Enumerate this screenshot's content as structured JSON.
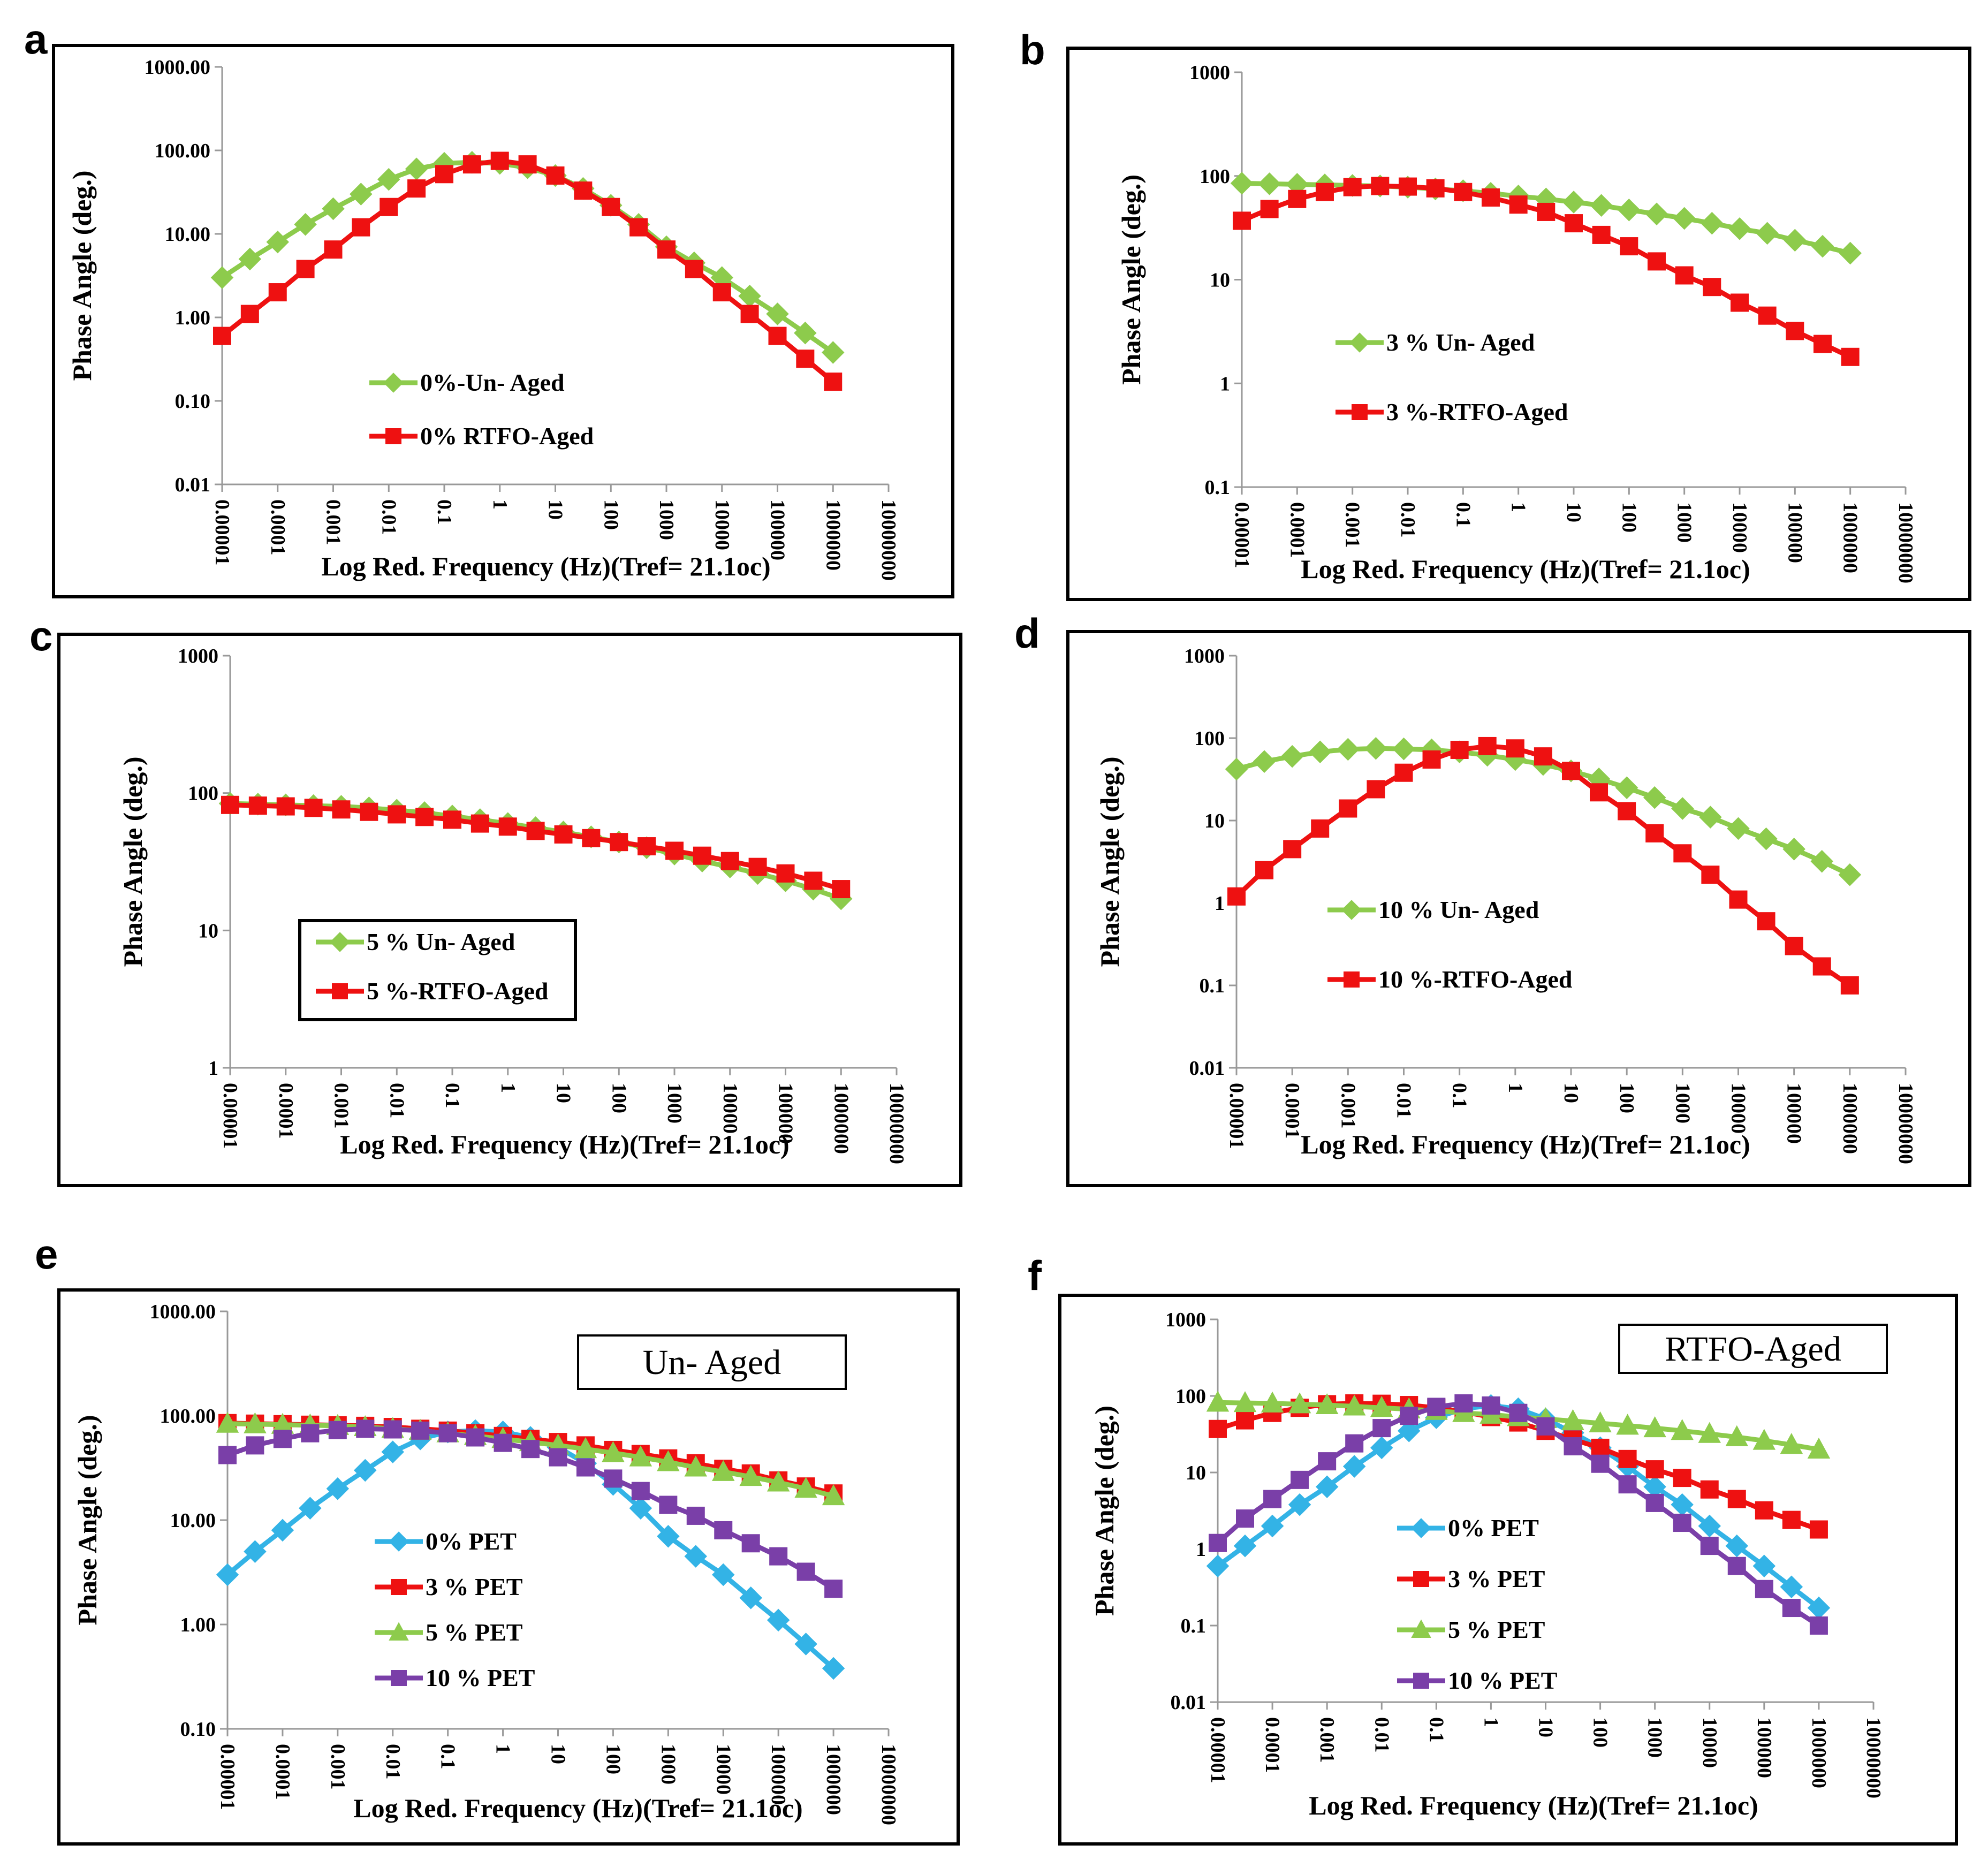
{
  "figure": {
    "x_tick_labels": [
      "0.00001",
      "0.0001",
      "0.001",
      "0.01",
      "0.1",
      "1",
      "10",
      "100",
      "1000",
      "10000",
      "100000",
      "1000000",
      "10000000"
    ],
    "colors": {
      "green": "#8DCB4C",
      "red": "#EE1111",
      "blue": "#33B3E6",
      "purple": "#7A3FA8",
      "frame": "#000000",
      "axis": "#999999"
    }
  },
  "chart_data": [
    {
      "panel": "a",
      "type": "line",
      "xscale": "log",
      "yscale": "log",
      "xlabel": "Log Red. Frequency (Hz)(Tref= 21.1oc)",
      "ylabel": "Phase Angle (deg.)",
      "xlim": [
        1e-05,
        10000000
      ],
      "ylim": [
        0.01,
        1000
      ],
      "ytick_labels": [
        "0.01",
        "0.10",
        "1.00",
        "10.00",
        "100.00",
        "1000.00"
      ],
      "legend_box": false,
      "series": [
        {
          "name": "0%-Un- Aged",
          "color": "#8DCB4C",
          "marker": "diamond",
          "x": [
            1e-05,
            3.16e-05,
            0.0001,
            0.000316,
            0.001,
            0.00316,
            0.01,
            0.0316,
            0.1,
            0.316,
            1,
            3.16,
            10,
            31.6,
            100,
            316,
            1000,
            3160,
            10000,
            31600,
            100000,
            316000,
            1000000
          ],
          "y": [
            3,
            5,
            8,
            13,
            20,
            30,
            45,
            60,
            70,
            72,
            70,
            62,
            50,
            35,
            22,
            13,
            7,
            4.5,
            3,
            1.8,
            1.1,
            0.65,
            0.38
          ]
        },
        {
          "name": "0% RTFO-Aged",
          "color": "#EE1111",
          "marker": "square",
          "x": [
            1e-05,
            3.16e-05,
            0.0001,
            0.000316,
            0.001,
            0.00316,
            0.01,
            0.0316,
            0.1,
            0.316,
            1,
            3.16,
            10,
            31.6,
            100,
            316,
            1000,
            3160,
            10000,
            31600,
            100000,
            316000,
            1000000
          ],
          "y": [
            0.6,
            1.1,
            2,
            3.8,
            6.5,
            12,
            21,
            35,
            52,
            68,
            75,
            68,
            50,
            33,
            21,
            12,
            6.5,
            3.8,
            2,
            1.1,
            0.6,
            0.32,
            0.17
          ]
        }
      ]
    },
    {
      "panel": "b",
      "type": "line",
      "xscale": "log",
      "yscale": "log",
      "xlabel": "Log Red. Frequency (Hz)(Tref= 21.1oc)",
      "ylabel": "Phase Angle (deg.)",
      "xlim": [
        1e-05,
        10000000
      ],
      "ylim": [
        0.1,
        1000
      ],
      "ytick_labels": [
        "0.1",
        "1",
        "10",
        "100",
        "1000"
      ],
      "legend_box": false,
      "series": [
        {
          "name": "3 % Un- Aged",
          "color": "#8DCB4C",
          "marker": "diamond",
          "x": [
            1e-05,
            3.16e-05,
            0.0001,
            0.000316,
            0.001,
            0.00316,
            0.01,
            0.0316,
            0.1,
            0.316,
            1,
            3.16,
            10,
            31.6,
            100,
            316,
            1000,
            3160,
            10000,
            31600,
            100000,
            316000,
            1000000
          ],
          "y": [
            85,
            84,
            83,
            82,
            81,
            80,
            78,
            75,
            72,
            68,
            64,
            60,
            56,
            52,
            47,
            43,
            39,
            35,
            31,
            28,
            24,
            21,
            18
          ]
        },
        {
          "name": "3 %-RTFO-Aged",
          "color": "#EE1111",
          "marker": "square",
          "x": [
            1e-05,
            3.16e-05,
            0.0001,
            0.000316,
            0.001,
            0.00316,
            0.01,
            0.0316,
            0.1,
            0.316,
            1,
            3.16,
            10,
            31.6,
            100,
            316,
            1000,
            3160,
            10000,
            31600,
            100000,
            316000,
            1000000
          ],
          "y": [
            37,
            48,
            60,
            70,
            78,
            80,
            79,
            76,
            70,
            62,
            53,
            45,
            35,
            27,
            21,
            15,
            11,
            8.5,
            6,
            4.5,
            3.2,
            2.4,
            1.8
          ]
        }
      ]
    },
    {
      "panel": "c",
      "type": "line",
      "xscale": "log",
      "yscale": "log",
      "xlabel": "Log Red. Frequency (Hz)(Tref= 21.1oc)",
      "ylabel": "Phase Angle (deg.)",
      "xlim": [
        1e-05,
        10000000
      ],
      "ylim": [
        1,
        1000
      ],
      "ytick_labels": [
        "1",
        "10",
        "100",
        "1000"
      ],
      "legend_box": true,
      "series": [
        {
          "name": "5 % Un- Aged",
          "color": "#8DCB4C",
          "marker": "diamond",
          "x": [
            1e-05,
            3.16e-05,
            0.0001,
            0.000316,
            0.001,
            0.00316,
            0.01,
            0.0316,
            0.1,
            0.316,
            1,
            3.16,
            10,
            31.6,
            100,
            316,
            1000,
            3160,
            10000,
            31600,
            100000,
            316000,
            1000000
          ],
          "y": [
            84,
            83,
            82,
            81,
            80,
            78,
            75,
            72,
            68,
            64,
            60,
            56,
            52,
            48,
            44,
            40,
            36,
            32,
            29,
            26,
            23,
            20,
            17
          ]
        },
        {
          "name": "5 %-RTFO-Aged",
          "color": "#EE1111",
          "marker": "square",
          "x": [
            1e-05,
            3.16e-05,
            0.0001,
            0.000316,
            0.001,
            0.00316,
            0.01,
            0.0316,
            0.1,
            0.316,
            1,
            3.16,
            10,
            31.6,
            100,
            316,
            1000,
            3160,
            10000,
            31600,
            100000,
            316000,
            1000000
          ],
          "y": [
            82,
            81,
            80,
            78,
            76,
            73,
            70,
            67,
            64,
            60,
            57,
            53,
            50,
            47,
            44,
            41,
            38,
            35,
            32,
            29,
            26,
            23,
            20
          ]
        }
      ]
    },
    {
      "panel": "d",
      "type": "line",
      "xscale": "log",
      "yscale": "log",
      "xlabel": "Log Red. Frequency (Hz)(Tref= 21.1oc)",
      "ylabel": "Phase Angle (deg.)",
      "xlim": [
        1e-05,
        10000000
      ],
      "ylim": [
        0.01,
        1000
      ],
      "ytick_labels": [
        "0.01",
        "0.1",
        "1",
        "10",
        "100",
        "1000"
      ],
      "legend_box": false,
      "series": [
        {
          "name": "10 % Un- Aged",
          "color": "#8DCB4C",
          "marker": "diamond",
          "x": [
            1e-05,
            3.16e-05,
            0.0001,
            0.000316,
            0.001,
            0.00316,
            0.01,
            0.0316,
            0.1,
            0.316,
            1,
            3.16,
            10,
            31.6,
            100,
            316,
            1000,
            3160,
            10000,
            31600,
            100000,
            316000,
            1000000
          ],
          "y": [
            42,
            52,
            60,
            68,
            73,
            75,
            74,
            72,
            68,
            62,
            55,
            48,
            40,
            32,
            25,
            19,
            14,
            11,
            8,
            6,
            4.5,
            3.2,
            2.2
          ]
        },
        {
          "name": "10 %-RTFO-Aged",
          "color": "#EE1111",
          "marker": "square",
          "x": [
            1e-05,
            3.16e-05,
            0.0001,
            0.000316,
            0.001,
            0.00316,
            0.01,
            0.0316,
            0.1,
            0.316,
            1,
            3.16,
            10,
            31.6,
            100,
            316,
            1000,
            3160,
            10000,
            31600,
            100000,
            316000,
            1000000
          ],
          "y": [
            1.2,
            2.5,
            4.5,
            8,
            14,
            24,
            38,
            55,
            72,
            80,
            75,
            60,
            40,
            22,
            13,
            7,
            4,
            2.2,
            1.1,
            0.6,
            0.3,
            0.17,
            0.1
          ]
        }
      ]
    },
    {
      "panel": "e",
      "type": "line",
      "xscale": "log",
      "yscale": "log",
      "xlabel": "Log Red. Frequency (Hz)(Tref= 21.1oc)",
      "ylabel": "Phase Angle (deg.)",
      "xlim": [
        1e-05,
        10000000
      ],
      "ylim": [
        0.1,
        1000
      ],
      "ytick_labels": [
        "0.10",
        "1.00",
        "10.00",
        "100.00",
        "1000.00"
      ],
      "title_box": "Un- Aged",
      "legend_box": false,
      "series": [
        {
          "name": "0% PET",
          "color": "#33B3E6",
          "marker": "diamond",
          "x": [
            1e-05,
            3.16e-05,
            0.0001,
            0.000316,
            0.001,
            0.00316,
            0.01,
            0.0316,
            0.1,
            0.316,
            1,
            3.16,
            10,
            31.6,
            100,
            316,
            1000,
            3160,
            10000,
            31600,
            100000,
            316000,
            1000000
          ],
          "y": [
            3,
            5,
            8,
            13,
            20,
            30,
            45,
            60,
            70,
            72,
            70,
            62,
            50,
            35,
            22,
            13,
            7,
            4.5,
            3,
            1.8,
            1.1,
            0.65,
            0.38
          ]
        },
        {
          "name": "3 % PET",
          "color": "#EE1111",
          "marker": "square",
          "x": [
            1e-05,
            3.16e-05,
            0.0001,
            0.000316,
            0.001,
            0.00316,
            0.01,
            0.0316,
            0.1,
            0.316,
            1,
            3.16,
            10,
            31.6,
            100,
            316,
            1000,
            3160,
            10000,
            31600,
            100000,
            316000,
            1000000
          ],
          "y": [
            85,
            84,
            83,
            82,
            81,
            80,
            78,
            75,
            72,
            68,
            64,
            60,
            56,
            52,
            47,
            43,
            39,
            35,
            31,
            28,
            24,
            21,
            18
          ]
        },
        {
          "name": "5 % PET",
          "color": "#8DCB4C",
          "marker": "triangle",
          "x": [
            1e-05,
            3.16e-05,
            0.0001,
            0.000316,
            0.001,
            0.00316,
            0.01,
            0.0316,
            0.1,
            0.316,
            1,
            3.16,
            10,
            31.6,
            100,
            316,
            1000,
            3160,
            10000,
            31600,
            100000,
            316000,
            1000000
          ],
          "y": [
            84,
            83,
            82,
            81,
            80,
            78,
            75,
            72,
            68,
            64,
            60,
            56,
            52,
            48,
            44,
            40,
            36,
            32,
            29,
            26,
            23,
            20,
            17
          ]
        },
        {
          "name": "10 % PET",
          "color": "#7A3FA8",
          "marker": "square",
          "x": [
            1e-05,
            3.16e-05,
            0.0001,
            0.000316,
            0.001,
            0.00316,
            0.01,
            0.0316,
            0.1,
            0.316,
            1,
            3.16,
            10,
            31.6,
            100,
            316,
            1000,
            3160,
            10000,
            31600,
            100000,
            316000,
            1000000
          ],
          "y": [
            42,
            52,
            60,
            68,
            73,
            75,
            74,
            72,
            68,
            62,
            55,
            48,
            40,
            32,
            25,
            19,
            14,
            11,
            8,
            6,
            4.5,
            3.2,
            2.2
          ]
        }
      ]
    },
    {
      "panel": "f",
      "type": "line",
      "xscale": "log",
      "yscale": "log",
      "xlabel": "Log Red. Frequency (Hz)(Tref= 21.1oc)",
      "ylabel": "Phase Angle (deg.)",
      "xlim": [
        1e-05,
        10000000
      ],
      "ylim": [
        0.01,
        1000
      ],
      "ytick_labels": [
        "0.01",
        "0.1",
        "1",
        "10",
        "100",
        "1000"
      ],
      "title_box": "RTFO-Aged",
      "legend_box": false,
      "series": [
        {
          "name": "0% PET",
          "color": "#33B3E6",
          "marker": "diamond",
          "x": [
            1e-05,
            3.16e-05,
            0.0001,
            0.000316,
            0.001,
            0.00316,
            0.01,
            0.0316,
            0.1,
            0.316,
            1,
            3.16,
            10,
            31.6,
            100,
            316,
            1000,
            3160,
            10000,
            31600,
            100000,
            316000,
            1000000
          ],
          "y": [
            0.6,
            1.1,
            2,
            3.8,
            6.5,
            12,
            21,
            35,
            52,
            68,
            75,
            68,
            50,
            33,
            21,
            12,
            6.5,
            3.8,
            2,
            1.1,
            0.6,
            0.32,
            0.17
          ]
        },
        {
          "name": "3 % PET",
          "color": "#EE1111",
          "marker": "square",
          "x": [
            1e-05,
            3.16e-05,
            0.0001,
            0.000316,
            0.001,
            0.00316,
            0.01,
            0.0316,
            0.1,
            0.316,
            1,
            3.16,
            10,
            31.6,
            100,
            316,
            1000,
            3160,
            10000,
            31600,
            100000,
            316000,
            1000000
          ],
          "y": [
            37,
            48,
            60,
            70,
            78,
            80,
            79,
            76,
            70,
            62,
            53,
            45,
            35,
            27,
            21,
            15,
            11,
            8.5,
            6,
            4.5,
            3.2,
            2.4,
            1.8
          ]
        },
        {
          "name": "5 % PET",
          "color": "#8DCB4C",
          "marker": "triangle",
          "x": [
            1e-05,
            3.16e-05,
            0.0001,
            0.000316,
            0.001,
            0.00316,
            0.01,
            0.0316,
            0.1,
            0.316,
            1,
            3.16,
            10,
            31.6,
            100,
            316,
            1000,
            3160,
            10000,
            31600,
            100000,
            316000,
            1000000
          ],
          "y": [
            82,
            81,
            80,
            78,
            76,
            73,
            70,
            67,
            64,
            60,
            57,
            53,
            50,
            47,
            44,
            41,
            38,
            35,
            32,
            29,
            26,
            23,
            20
          ]
        },
        {
          "name": "10 % PET",
          "color": "#7A3FA8",
          "marker": "square",
          "x": [
            1e-05,
            3.16e-05,
            0.0001,
            0.000316,
            0.001,
            0.00316,
            0.01,
            0.0316,
            0.1,
            0.316,
            1,
            3.16,
            10,
            31.6,
            100,
            316,
            1000,
            3160,
            10000,
            31600,
            100000,
            316000,
            1000000
          ],
          "y": [
            1.2,
            2.5,
            4.5,
            8,
            14,
            24,
            38,
            55,
            72,
            80,
            75,
            60,
            40,
            22,
            13,
            7,
            4,
            2.2,
            1.1,
            0.6,
            0.3,
            0.17,
            0.1
          ]
        }
      ]
    }
  ]
}
